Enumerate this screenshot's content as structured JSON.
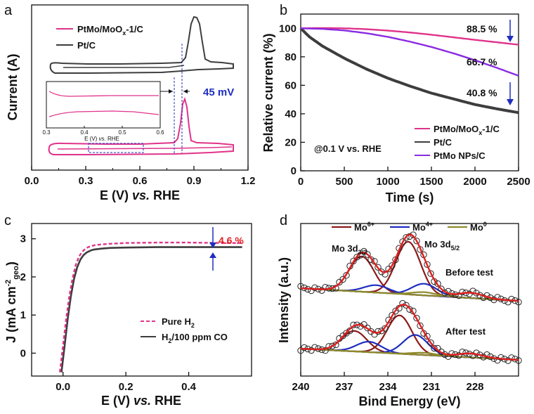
{
  "colors": {
    "pink": "#e0338a",
    "gray": "#3d3d3d",
    "purple": "#8a2be2",
    "blue": "#1f2dbf",
    "red": "#e02020",
    "mo6": "#8b1a1a",
    "mo4": "#1f2dbf",
    "mo0": "#8f8a2a",
    "fit": "#e02020"
  },
  "chart_data": [
    {
      "panel": "a",
      "type": "line",
      "xlabel_parts": [
        "E (V) ",
        "vs.",
        " RHE"
      ],
      "ylabel": "Current (A)",
      "xlim": [
        0,
        1.2
      ],
      "xticks": [
        "0.0",
        "0.3",
        "0.6",
        "0.9",
        "1.2"
      ],
      "legend": [
        {
          "name_main": "PtMo/MoO",
          "name_sub": "x",
          "name_tail": "-1/C",
          "color": "pink"
        },
        {
          "name_main": "Pt/C",
          "name_sub": "",
          "name_tail": "",
          "color": "gray"
        }
      ],
      "series": [
        {
          "name": "Pt/C",
          "color": "gray",
          "description": "CO stripping cyclic voltammogram, peak at ~0.88 V",
          "peak_E": 0.88,
          "onset_E": 0.77
        },
        {
          "name": "PtMo/MoOx-1/C",
          "color": "pink",
          "description": "CO stripping cyclic voltammogram, peak at ~0.835 V",
          "peak_E": 0.835,
          "onset_E": 0.72
        }
      ],
      "annotation": "45 mV",
      "inset": {
        "xticks": [
          "0.3",
          "0.4",
          "0.5",
          "0.6"
        ],
        "xlabel_parts": [
          "E (V) ",
          "vs.",
          " RHE"
        ],
        "xlim": [
          0.3,
          0.6
        ]
      }
    },
    {
      "panel": "b",
      "type": "line",
      "title": "",
      "xlabel": "Time (s)",
      "ylabel": "Relative current (%)",
      "xlim": [
        0,
        2500
      ],
      "ylim": [
        0,
        110
      ],
      "xticks": [
        0,
        500,
        1000,
        1500,
        2000,
        2500
      ],
      "yticks": [
        0,
        20,
        40,
        60,
        80,
        100
      ],
      "series": [
        {
          "name_main": "PtMo/MoO",
          "name_sub": "x",
          "name_tail": "-1/C",
          "color": "pink",
          "x": [
            0,
            250,
            500,
            750,
            1000,
            1250,
            1500,
            1750,
            2000,
            2250,
            2500
          ],
          "y": [
            100,
            100.2,
            100,
            99.4,
            98.4,
            97.1,
            95.5,
            93.7,
            91.9,
            90.2,
            88.5
          ]
        },
        {
          "name_main": "Pt/C",
          "name_sub": "",
          "name_tail": "",
          "color": "gray",
          "x": [
            0,
            100,
            250,
            500,
            750,
            1000,
            1250,
            1500,
            1750,
            2000,
            2250,
            2500
          ],
          "y": [
            100,
            94,
            87.5,
            79,
            71.5,
            65,
            59.5,
            54.5,
            50.5,
            46.5,
            43.5,
            40.8
          ]
        },
        {
          "name_main": "PtMo NPs/C",
          "name_sub": "",
          "name_tail": "",
          "color": "purple",
          "x": [
            0,
            250,
            500,
            750,
            1000,
            1250,
            1500,
            1750,
            2000,
            2250,
            2500
          ],
          "y": [
            100,
            99.6,
            98.5,
            96.6,
            94,
            90.7,
            86.9,
            82.5,
            77.6,
            72.3,
            66.7
          ]
        }
      ],
      "annotations": [
        "88.5 %",
        "66.7 %",
        "40.8 %"
      ],
      "condition_note": "@0.1 V vs. RHE"
    },
    {
      "panel": "c",
      "type": "line",
      "xlabel_parts": [
        "E (V) ",
        "vs.",
        " RHE"
      ],
      "ylabel_main": "J (mA cm",
      "ylabel_sup": "-2",
      "ylabel_sub": "geo",
      "ylabel_tail": ")",
      "xlim": [
        -0.1,
        0.6
      ],
      "ylim": [
        -0.6,
        3.4
      ],
      "xticks": [
        0.0,
        0.2,
        0.4
      ],
      "yticks": [
        0,
        1,
        2,
        3
      ],
      "series": [
        {
          "name_main": "Pure H",
          "name_sub": "2",
          "name_tail": "",
          "color": "pink",
          "dashed": true,
          "x": [
            -0.01,
            0.0,
            0.01,
            0.02,
            0.03,
            0.04,
            0.05,
            0.06,
            0.07,
            0.08,
            0.1,
            0.12,
            0.15,
            0.2,
            0.3,
            0.4,
            0.5,
            0.57
          ],
          "y": [
            -0.5,
            0.2,
            0.9,
            1.5,
            1.95,
            2.3,
            2.52,
            2.65,
            2.73,
            2.78,
            2.83,
            2.85,
            2.87,
            2.89,
            2.9,
            2.9,
            2.89,
            2.89
          ]
        },
        {
          "name_main": "H",
          "name_sub": "2",
          "name_tail": "/100 ppm CO",
          "color": "gray",
          "dashed": false,
          "x": [
            -0.005,
            0.005,
            0.015,
            0.025,
            0.035,
            0.045,
            0.055,
            0.065,
            0.075,
            0.09,
            0.1,
            0.12,
            0.15,
            0.2,
            0.3,
            0.4,
            0.5,
            0.57
          ],
          "y": [
            -0.5,
            0.2,
            0.9,
            1.5,
            1.95,
            2.25,
            2.45,
            2.57,
            2.64,
            2.7,
            2.72,
            2.74,
            2.76,
            2.77,
            2.78,
            2.78,
            2.78,
            2.78
          ]
        }
      ],
      "annotation": "4.6 %"
    },
    {
      "panel": "d",
      "type": "line",
      "xlabel": "Bind Energy (eV)",
      "ylabel": "Intensity (a.u.)",
      "xlim": [
        240,
        225
      ],
      "xticks": [
        240,
        237,
        234,
        231,
        228
      ],
      "legend": [
        {
          "name": "Mo",
          "sup": "6+",
          "color": "mo6"
        },
        {
          "name": "Mo",
          "sup": "4+",
          "color": "mo4"
        },
        {
          "name": "Mo",
          "sup": "0",
          "color": "mo0"
        }
      ],
      "peak_labels": [
        {
          "main": "Mo 3d",
          "sub": "3/2"
        },
        {
          "main": "Mo 3d",
          "sub": "5/2"
        }
      ],
      "spectra": [
        {
          "label": "Before test",
          "peaks": [
            {
              "species": "Mo6+",
              "center": 232.6,
              "height": 1.0
            },
            {
              "species": "Mo6+",
              "center": 235.8,
              "height": 0.67
            },
            {
              "species": "Mo4+",
              "center": 231.5,
              "height": 0.22
            },
            {
              "species": "Mo4+",
              "center": 234.8,
              "height": 0.14
            },
            {
              "species": "Mo0",
              "center": 228.3,
              "height": 0.1
            },
            {
              "species": "Mo0",
              "center": 231.5,
              "height": 0.06
            }
          ]
        },
        {
          "label": "After test",
          "peaks": [
            {
              "species": "Mo6+",
              "center": 233.2,
              "height": 0.88
            },
            {
              "species": "Mo6+",
              "center": 236.3,
              "height": 0.47
            },
            {
              "species": "Mo4+",
              "center": 232.1,
              "height": 0.45
            },
            {
              "species": "Mo4+",
              "center": 235.3,
              "height": 0.24
            },
            {
              "species": "Mo0",
              "center": 228.3,
              "height": 0.09
            },
            {
              "species": "Mo0",
              "center": 231.5,
              "height": 0.05
            }
          ]
        }
      ]
    }
  ]
}
